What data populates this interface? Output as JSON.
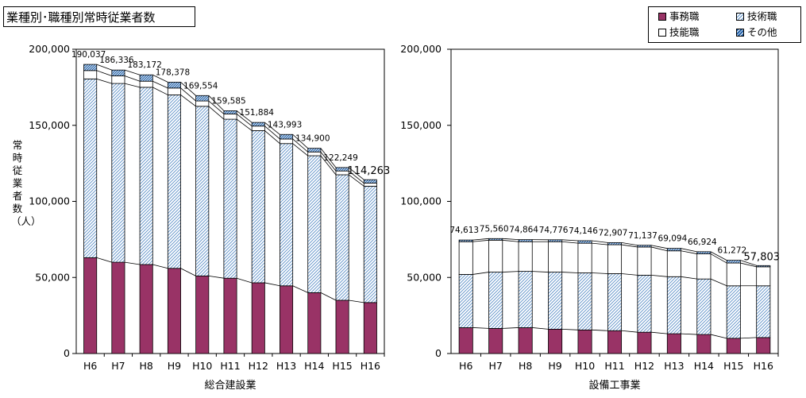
{
  "title": "業種別･職種別常時従業者数",
  "legend": {
    "items": [
      {
        "label": "事務職",
        "pattern": "office"
      },
      {
        "label": "技術職",
        "pattern": "technical"
      },
      {
        "label": "技能職",
        "pattern": "skilled"
      },
      {
        "label": "その他",
        "pattern": "other"
      }
    ]
  },
  "ylabel": "常時従業者数（人）",
  "colors": {
    "office": "#993366",
    "technical_hatch": "#5b8fc7",
    "other_hatch": "#1f5fa8",
    "skilled": "#ffffff",
    "axis": "#000000"
  },
  "chart_data": [
    {
      "type": "bar",
      "stacked": true,
      "xlabel": "総合建設業",
      "categories": [
        "H6",
        "H7",
        "H8",
        "H9",
        "H10",
        "H11",
        "H12",
        "H13",
        "H14",
        "H15",
        "H16"
      ],
      "ylim": [
        0,
        200000
      ],
      "yticks": [
        "0",
        "50,000",
        "100,000",
        "150,000",
        "200,000"
      ],
      "series": [
        {
          "name": "事務職",
          "values": [
            63000,
            60000,
            58500,
            56000,
            51000,
            49500,
            46500,
            44500,
            40000,
            35000,
            33500
          ]
        },
        {
          "name": "技術職",
          "values": [
            117500,
            117500,
            116500,
            114000,
            111500,
            104500,
            100000,
            93500,
            90000,
            82500,
            76500
          ]
        },
        {
          "name": "技能職",
          "values": [
            5500,
            5000,
            4000,
            4500,
            3500,
            3500,
            3000,
            3000,
            2500,
            2500,
            2000
          ]
        },
        {
          "name": "その他",
          "values": [
            4037,
            3836,
            4172,
            3878,
            3554,
            2085,
            2384,
            2993,
            2400,
            2249,
            2263
          ]
        }
      ],
      "totals": [
        "190,037",
        "186,336",
        "183,172",
        "178,378",
        "169,554",
        "159,585",
        "151,884",
        "143,993",
        "134,900",
        "122,249",
        "114,263"
      ]
    },
    {
      "type": "bar",
      "stacked": true,
      "xlabel": "設備工事業",
      "categories": [
        "H6",
        "H7",
        "H8",
        "H9",
        "H10",
        "H11",
        "H12",
        "H13",
        "H14",
        "H15",
        "H16"
      ],
      "ylim": [
        0,
        200000
      ],
      "yticks": [
        "0",
        "50,000",
        "100,000",
        "150,000",
        "200,000"
      ],
      "series": [
        {
          "name": "事務職",
          "values": [
            17000,
            16500,
            17000,
            16000,
            15500,
            15000,
            14000,
            13000,
            12500,
            10000,
            10500
          ]
        },
        {
          "name": "技術職",
          "values": [
            35000,
            37000,
            37000,
            37500,
            37500,
            37500,
            37500,
            37500,
            36500,
            34500,
            34000
          ]
        },
        {
          "name": "技能職",
          "values": [
            21500,
            21000,
            19500,
            20000,
            19500,
            19000,
            18500,
            17000,
            16500,
            15000,
            12500
          ]
        },
        {
          "name": "その他",
          "values": [
            1113,
            1060,
            1364,
            1276,
            1646,
            1407,
            1137,
            1594,
            1424,
            1772,
            803
          ]
        }
      ],
      "totals": [
        "74,613",
        "75,560",
        "74,864",
        "74,776",
        "74,146",
        "72,907",
        "71,137",
        "69,094",
        "66,924",
        "61,272",
        "57,803"
      ]
    }
  ]
}
